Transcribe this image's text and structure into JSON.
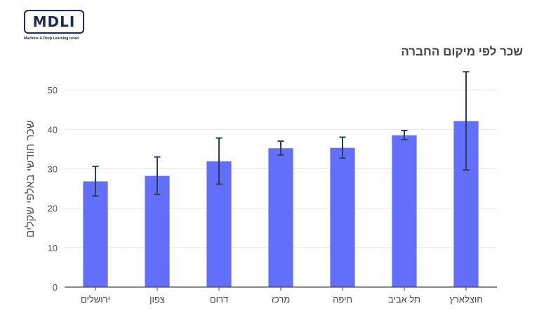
{
  "logo": {
    "text": "MDLI",
    "subtitle": "Machine & Deep Learning Israel"
  },
  "chart_data": {
    "type": "bar",
    "title": "שכר לפי מיקום החברה",
    "xlabel": "",
    "ylabel": "שכר חודשי באלפי שקלים",
    "categories": [
      "ירושלים",
      "צפון",
      "דרום",
      "מרכז",
      "חיפה",
      "תל אביב",
      "חוצלארץ"
    ],
    "values": [
      26.8,
      28.2,
      31.9,
      35.2,
      35.3,
      38.5,
      42.1
    ],
    "error_low": [
      23.1,
      23.5,
      26.1,
      33.5,
      32.7,
      37.4,
      29.7
    ],
    "error_high": [
      30.6,
      33.0,
      37.8,
      37.0,
      38.0,
      39.7,
      54.6
    ],
    "ylim": [
      0,
      55
    ],
    "yticks": [
      0,
      10,
      20,
      30,
      40,
      50
    ],
    "grid": true,
    "bar_color": "#636efa",
    "error_color": "#2a3f5f"
  }
}
